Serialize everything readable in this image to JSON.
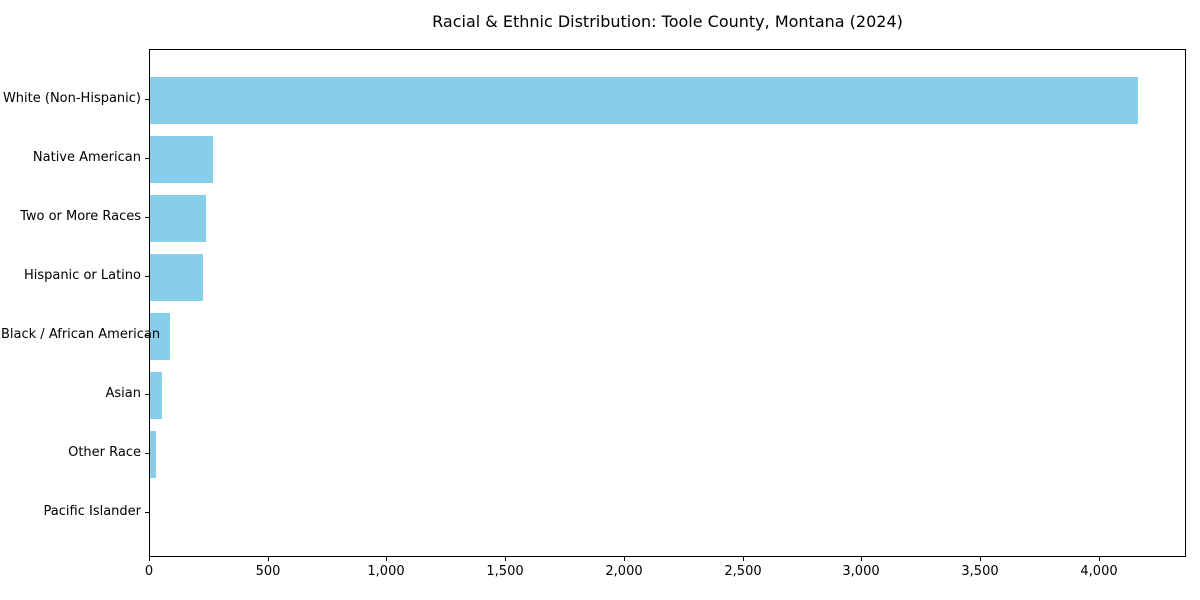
{
  "chart_data": {
    "type": "bar",
    "orientation": "horizontal",
    "title": "Racial & Ethnic Distribution: Toole County, Montana (2024)",
    "categories": [
      "White (Non-Hispanic)",
      "Native American",
      "Two or More Races",
      "Hispanic or Latino",
      "Black / African American",
      "Asian",
      "Other Race",
      "Pacific Islander"
    ],
    "values": [
      4160,
      265,
      235,
      225,
      85,
      50,
      25,
      0
    ],
    "xlabel": "",
    "ylabel": "",
    "xlim": [
      0,
      4368
    ],
    "x_ticks": [
      {
        "value": 0,
        "label": "0"
      },
      {
        "value": 500,
        "label": "500"
      },
      {
        "value": 1000,
        "label": "1,000"
      },
      {
        "value": 1500,
        "label": "1,500"
      },
      {
        "value": 2000,
        "label": "2,000"
      },
      {
        "value": 2500,
        "label": "2,500"
      },
      {
        "value": 3000,
        "label": "3,000"
      },
      {
        "value": 3500,
        "label": "3,500"
      },
      {
        "value": 4000,
        "label": "4,000"
      }
    ],
    "grid": false,
    "legend": null,
    "bar_color": "#87CEEB",
    "axis_color": "#000000",
    "background_color": "#ffffff"
  }
}
